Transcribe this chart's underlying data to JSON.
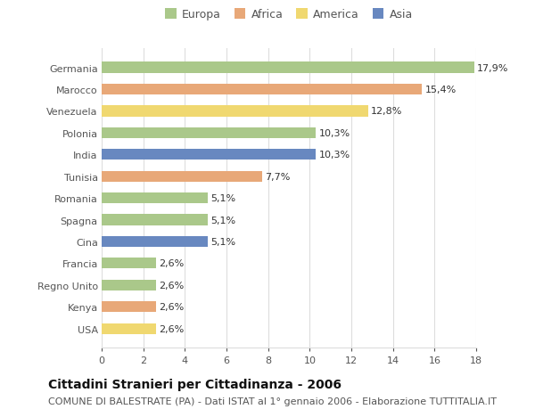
{
  "categories": [
    "Germania",
    "Marocco",
    "Venezuela",
    "Polonia",
    "India",
    "Tunisia",
    "Romania",
    "Spagna",
    "Cina",
    "Francia",
    "Regno Unito",
    "Kenya",
    "USA"
  ],
  "values": [
    17.9,
    15.4,
    12.8,
    10.3,
    10.3,
    7.7,
    5.1,
    5.1,
    5.1,
    2.6,
    2.6,
    2.6,
    2.6
  ],
  "labels": [
    "17,9%",
    "15,4%",
    "12,8%",
    "10,3%",
    "10,3%",
    "7,7%",
    "5,1%",
    "5,1%",
    "5,1%",
    "2,6%",
    "2,6%",
    "2,6%",
    "2,6%"
  ],
  "continents": [
    "Europa",
    "Africa",
    "America",
    "Europa",
    "Asia",
    "Africa",
    "Europa",
    "Europa",
    "Asia",
    "Europa",
    "Europa",
    "Africa",
    "America"
  ],
  "colors": {
    "Europa": "#aac88a",
    "Africa": "#e8a878",
    "America": "#f0d870",
    "Asia": "#6888c0"
  },
  "xlim": [
    0,
    18
  ],
  "xticks": [
    0,
    2,
    4,
    6,
    8,
    10,
    12,
    14,
    16,
    18
  ],
  "title": "Cittadini Stranieri per Cittadinanza - 2006",
  "subtitle": "COMUNE DI BALESTRATE (PA) - Dati ISTAT al 1° gennaio 2006 - Elaborazione TUTTITALIA.IT",
  "background_color": "#ffffff",
  "plot_bg_color": "#ffffff",
  "grid_color": "#dddddd",
  "text_color": "#555555",
  "label_fontsize": 8,
  "tick_fontsize": 8,
  "title_fontsize": 10,
  "subtitle_fontsize": 8,
  "bar_height": 0.5
}
